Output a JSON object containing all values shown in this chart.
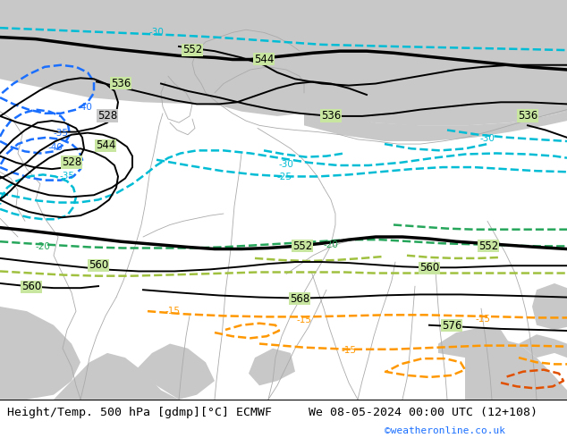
{
  "title_left": "Height/Temp. 500 hPa [gdmp][°C] ECMWF",
  "title_right": "We 08-05-2024 00:00 UTC (12+108)",
  "credit": "©weatheronline.co.uk",
  "bg_land_green": "#c8e6a0",
  "bg_gray": "#c8c8c8",
  "bg_white": "#f0f0f0",
  "black_c": "#000000",
  "blue_c": "#1a6fff",
  "cyan_c": "#00bcd4",
  "teal_c": "#26a65b",
  "green_c": "#8bc34a",
  "orange_c": "#ff9800",
  "boundary_c": "#aaaaaa",
  "figsize": [
    6.34,
    4.9
  ],
  "dpi": 100
}
